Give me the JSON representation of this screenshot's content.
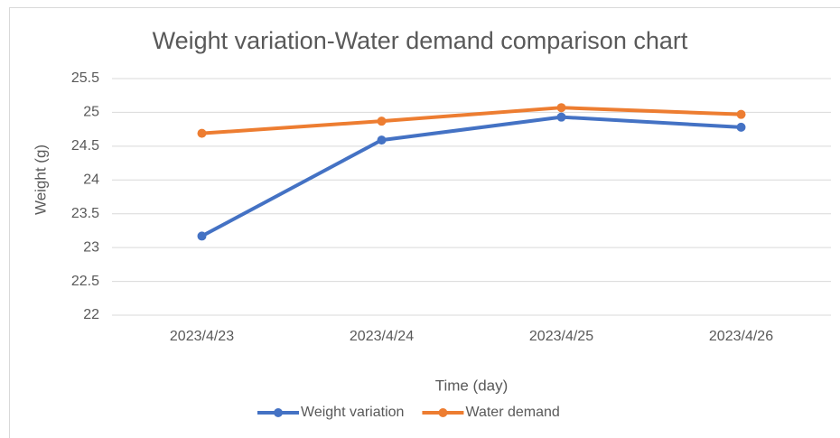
{
  "chart_data": {
    "type": "line",
    "title": "Weight variation-Water demand comparison chart",
    "x_label": "Time (day)",
    "y_label": "Weight (g)",
    "categories": [
      "2023/4/23",
      "2023/4/24",
      "2023/4/25",
      "2023/4/26"
    ],
    "series": [
      {
        "name": "Weight variation",
        "color": "#4472c4",
        "values": [
          23.17,
          24.59,
          24.93,
          24.78
        ]
      },
      {
        "name": "Water demand",
        "color": "#ed7d31",
        "values": [
          24.69,
          24.87,
          25.07,
          24.97
        ]
      }
    ],
    "ylim": [
      22,
      25.5
    ],
    "yticks": [
      22,
      22.5,
      23,
      23.5,
      24,
      24.5,
      25,
      25.5
    ],
    "grid": true,
    "legend": "bottom"
  }
}
